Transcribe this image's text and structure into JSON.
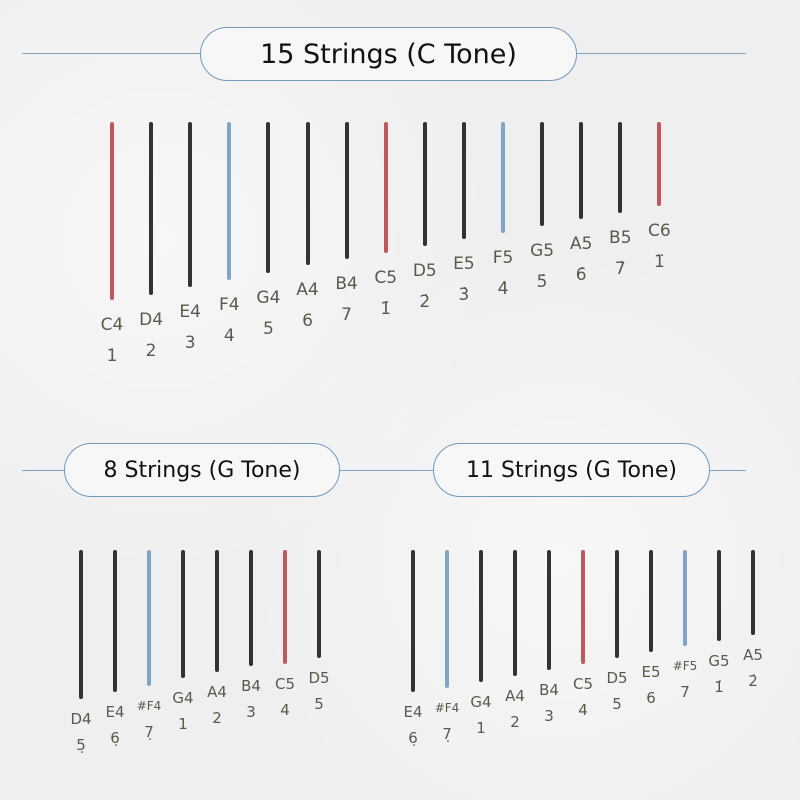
{
  "colors": {
    "root": "#c0575a",
    "accent": "#7fa6c6",
    "normal": "#333333",
    "frame": "#6f9ac0"
  },
  "panels": [
    {
      "title": "15 Strings (C Tone)",
      "strings": [
        {
          "note": "C4",
          "degree": "1",
          "color": "root"
        },
        {
          "note": "D4",
          "degree": "2",
          "color": "normal"
        },
        {
          "note": "E4",
          "degree": "3",
          "color": "normal"
        },
        {
          "note": "F4",
          "degree": "4",
          "color": "accent"
        },
        {
          "note": "G4",
          "degree": "5",
          "color": "normal"
        },
        {
          "note": "A4",
          "degree": "6",
          "color": "normal"
        },
        {
          "note": "B4",
          "degree": "7",
          "color": "normal"
        },
        {
          "note": "C5",
          "degree": "1̇",
          "color": "root"
        },
        {
          "note": "D5",
          "degree": "2̇",
          "color": "normal"
        },
        {
          "note": "E5",
          "degree": "3̇",
          "color": "normal"
        },
        {
          "note": "F5",
          "degree": "4̇",
          "color": "accent"
        },
        {
          "note": "G5",
          "degree": "5̇",
          "color": "normal"
        },
        {
          "note": "A5",
          "degree": "6̇",
          "color": "normal"
        },
        {
          "note": "B5",
          "degree": "7̇",
          "color": "normal"
        },
        {
          "note": "C6",
          "degree": "1̈",
          "color": "root"
        }
      ]
    },
    {
      "title": "8 Strings (G Tone)",
      "strings": [
        {
          "note": "D4",
          "degree": "5̣",
          "color": "normal"
        },
        {
          "note": "E4",
          "degree": "6̣",
          "color": "normal"
        },
        {
          "note": "#F4",
          "degree": "7̣",
          "color": "accent"
        },
        {
          "note": "G4",
          "degree": "1",
          "color": "normal"
        },
        {
          "note": "A4",
          "degree": "2",
          "color": "normal"
        },
        {
          "note": "B4",
          "degree": "3",
          "color": "normal"
        },
        {
          "note": "C5",
          "degree": "4",
          "color": "root"
        },
        {
          "note": "D5",
          "degree": "5",
          "color": "normal"
        }
      ]
    },
    {
      "title": "11 Strings (G Tone)",
      "strings": [
        {
          "note": "E4",
          "degree": "6̣",
          "color": "normal"
        },
        {
          "note": "#F4",
          "degree": "7̣",
          "color": "accent"
        },
        {
          "note": "G4",
          "degree": "1",
          "color": "normal"
        },
        {
          "note": "A4",
          "degree": "2",
          "color": "normal"
        },
        {
          "note": "B4",
          "degree": "3",
          "color": "normal"
        },
        {
          "note": "C5",
          "degree": "4",
          "color": "root"
        },
        {
          "note": "D5",
          "degree": "5",
          "color": "normal"
        },
        {
          "note": "E5",
          "degree": "6",
          "color": "normal"
        },
        {
          "note": "#F5",
          "degree": "7",
          "color": "accent"
        },
        {
          "note": "G5",
          "degree": "1̇",
          "color": "normal"
        },
        {
          "note": "A5",
          "degree": "2̇",
          "color": "normal"
        }
      ]
    }
  ]
}
